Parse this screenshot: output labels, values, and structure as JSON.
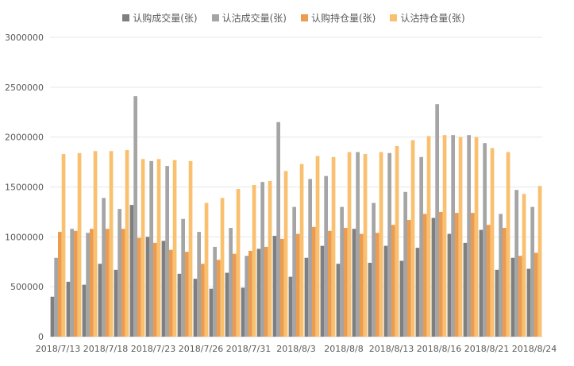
{
  "chart_data": {
    "type": "bar",
    "title": "",
    "xlabel": "",
    "ylabel": "",
    "ylim": [
      0,
      3000000
    ],
    "yticks": [
      "0",
      "500000",
      "1000000",
      "1500000",
      "2000000",
      "2500000",
      "3000000"
    ],
    "grid": true,
    "legend_position": "top",
    "categories": [
      "2018/7/13",
      "2018/7/16",
      "2018/7/17",
      "2018/7/18",
      "2018/7/19",
      "2018/7/20",
      "2018/7/23",
      "2018/7/24",
      "2018/7/25",
      "2018/7/26",
      "2018/7/27",
      "2018/7/30",
      "2018/7/31",
      "2018/8/1",
      "2018/8/2",
      "2018/8/3",
      "2018/8/6",
      "2018/8/7",
      "2018/8/8",
      "2018/8/9",
      "2018/8/10",
      "2018/8/13",
      "2018/8/14",
      "2018/8/15",
      "2018/8/16",
      "2018/8/17",
      "2018/8/20",
      "2018/8/21",
      "2018/8/22",
      "2018/8/23",
      "2018/8/24"
    ],
    "x_tick_labels": [
      "2018/7/13",
      "2018/7/18",
      "2018/7/23",
      "2018/7/26",
      "2018/7/31",
      "2018/8/3",
      "2018/8/8",
      "2018/8/13",
      "2018/8/16",
      "2018/8/21",
      "2018/8/24"
    ],
    "x_tick_indices": [
      0,
      3,
      6,
      9,
      12,
      15,
      18,
      21,
      24,
      27,
      30
    ],
    "series": [
      {
        "name": "认购成交量(张)",
        "color": "#7f7f7f",
        "values": [
          400000,
          550000,
          520000,
          730000,
          670000,
          1320000,
          1000000,
          960000,
          630000,
          580000,
          480000,
          640000,
          490000,
          880000,
          1010000,
          600000,
          790000,
          910000,
          730000,
          1080000,
          740000,
          910000,
          760000,
          890000,
          1190000,
          1030000,
          940000,
          1070000,
          670000,
          790000,
          680000
        ]
      },
      {
        "name": "认沽成交量(张)",
        "color": "#a5a5a5",
        "values": [
          790000,
          1080000,
          1040000,
          1390000,
          1280000,
          2410000,
          1760000,
          1710000,
          1180000,
          1050000,
          900000,
          1090000,
          810000,
          1550000,
          2150000,
          1300000,
          1580000,
          1610000,
          1300000,
          1850000,
          1340000,
          1840000,
          1450000,
          1800000,
          2330000,
          2020000,
          2020000,
          1940000,
          1230000,
          1470000,
          1300000
        ]
      },
      {
        "name": "认购持仓量(张)",
        "color": "#ed9c4f",
        "values": [
          1050000,
          1060000,
          1080000,
          1080000,
          1080000,
          990000,
          940000,
          870000,
          850000,
          730000,
          770000,
          830000,
          860000,
          900000,
          980000,
          1030000,
          1100000,
          1060000,
          1090000,
          1030000,
          1040000,
          1120000,
          1170000,
          1230000,
          1250000,
          1240000,
          1240000,
          1120000,
          1090000,
          810000,
          840000
        ]
      },
      {
        "name": "认沽持仓量(张)",
        "color": "#f9c06f",
        "values": [
          1830000,
          1840000,
          1860000,
          1860000,
          1870000,
          1780000,
          1780000,
          1770000,
          1760000,
          1340000,
          1390000,
          1480000,
          1520000,
          1560000,
          1660000,
          1730000,
          1810000,
          1800000,
          1850000,
          1830000,
          1850000,
          1910000,
          1970000,
          2010000,
          2020000,
          2000000,
          2000000,
          1890000,
          1850000,
          1430000,
          1510000
        ]
      }
    ]
  }
}
